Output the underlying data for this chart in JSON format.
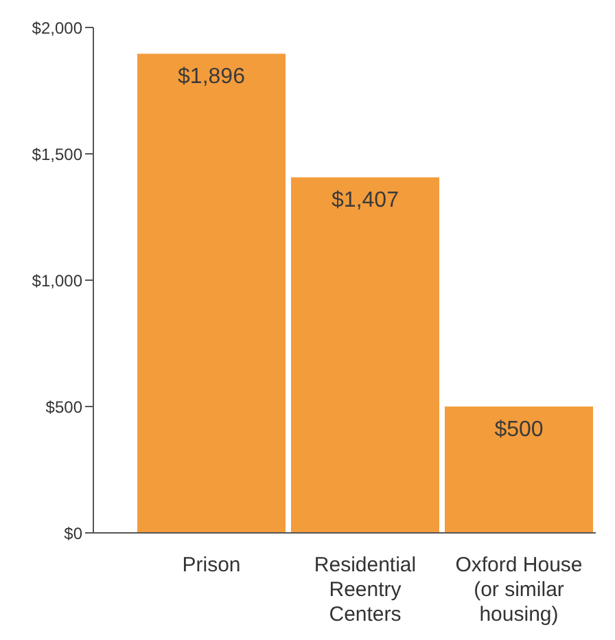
{
  "chart_data": {
    "type": "bar",
    "categories": [
      "Prison",
      "Residential Reentry Centers",
      "Oxford House (or similar housing)"
    ],
    "values": [
      1896,
      1407,
      500
    ],
    "value_labels": [
      "$1,896",
      "$1,407",
      "$500"
    ],
    "color": "#f39c3c",
    "ylim": [
      0,
      2000
    ],
    "yticks": [
      {
        "value": 0,
        "label": "$0"
      },
      {
        "value": 500,
        "label": "$500"
      },
      {
        "value": 1000,
        "label": "$1,000"
      },
      {
        "value": 1500,
        "label": "$1,500"
      },
      {
        "value": 2000,
        "label": "$2,000"
      }
    ],
    "grid": false
  }
}
